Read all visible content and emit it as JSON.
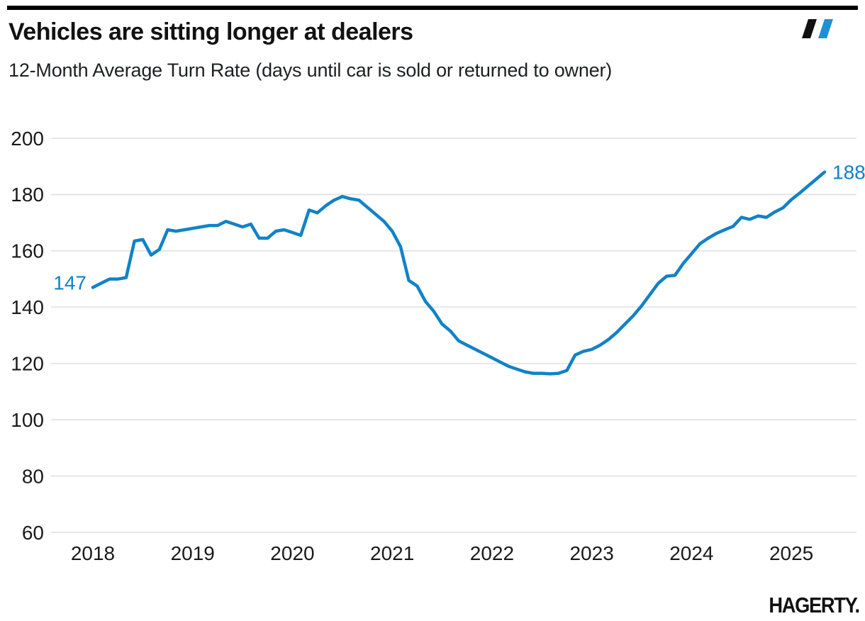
{
  "header": {
    "brand_mark": {
      "name": "hagerty-double-slash",
      "slash1_color": "#111111",
      "slash2_color": "#1d91d4"
    }
  },
  "footer": {
    "brand_wordmark": "HAGERTY."
  },
  "chart_data": {
    "type": "line",
    "title": "Vehicles are sitting longer at dealers",
    "subtitle": "12-Month Average Turn Rate (days until car is sold or returned to owner)",
    "unit": "days",
    "x_start": "2018-01",
    "x_end": "2025-05",
    "x_tick_labels": [
      "2018",
      "2019",
      "2020",
      "2021",
      "2022",
      "2023",
      "2024",
      "2025"
    ],
    "x_tick_every_n_points": 12,
    "y_ticks": [
      60,
      80,
      100,
      120,
      140,
      160,
      180,
      200
    ],
    "ylim": [
      60,
      200
    ],
    "grid": "horizontal",
    "legend": "none",
    "start_label": "147",
    "end_label": "188",
    "line_color": "#1182c6",
    "value_label_color": "#1182c6",
    "grid_color": "#e3e3e3",
    "tick_color": "#1a1a1a",
    "series": [
      {
        "name": "12-Month Average Turn Rate (days)",
        "values": [
          147,
          148.5,
          150,
          150,
          150.5,
          163.5,
          164,
          158.5,
          160.5,
          167.5,
          167,
          167.5,
          168,
          168.5,
          169,
          169,
          170.5,
          169.5,
          168.5,
          169.5,
          164.5,
          164.5,
          167,
          167.5,
          166.5,
          165.5,
          174.5,
          173.5,
          176,
          178,
          179.3,
          178.5,
          178,
          175.5,
          173,
          170.5,
          167,
          161.5,
          149.5,
          147.5,
          142,
          138.5,
          134,
          131.5,
          128,
          126.5,
          125,
          123.5,
          122,
          120.5,
          119,
          118,
          117,
          116.5,
          116.5,
          116.3,
          116.5,
          117.5,
          123,
          124.3,
          125,
          126.5,
          128.5,
          131,
          134,
          137,
          140.5,
          144.5,
          148.5,
          151,
          151.3,
          155.5,
          159,
          162.5,
          164.5,
          166.2,
          167.5,
          168.7,
          171.9,
          171.2,
          172.4,
          171.9,
          173.8,
          175.3,
          178.2,
          180.5,
          183,
          185.5,
          188
        ]
      }
    ]
  }
}
